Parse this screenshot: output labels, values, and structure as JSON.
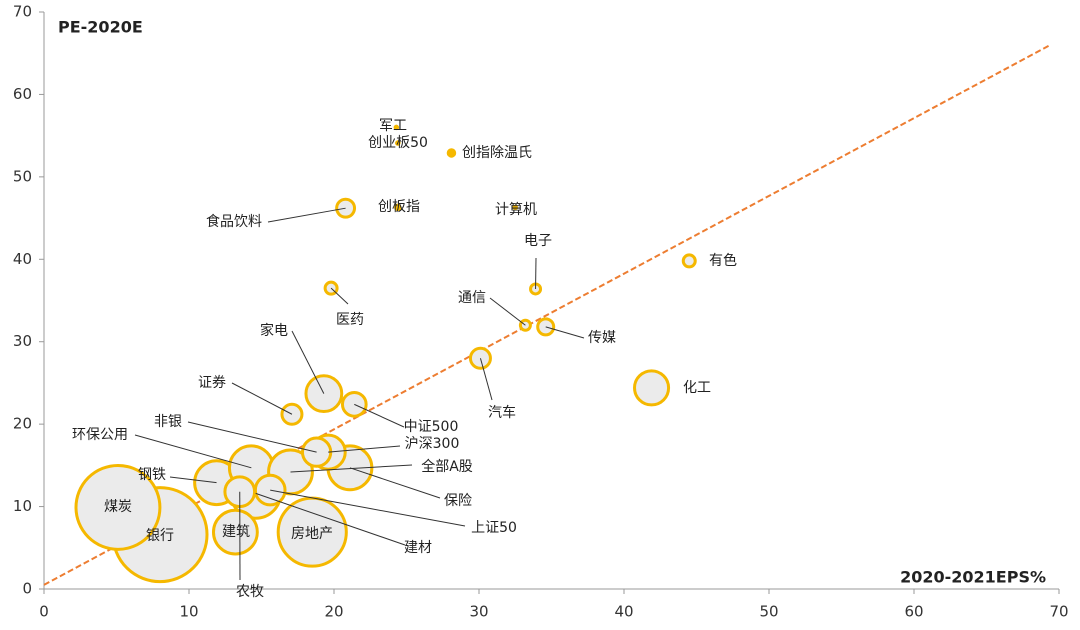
{
  "chart_data": {
    "type": "bubble",
    "title": "PE-2020E",
    "x_label": "2020-2021EPS%",
    "xlim": [
      0,
      70
    ],
    "ylim": [
      0,
      70
    ],
    "xticks": [
      0,
      10,
      20,
      30,
      40,
      50,
      60,
      70
    ],
    "yticks": [
      0,
      10,
      20,
      30,
      40,
      50,
      60,
      70
    ],
    "bubble_color": "#f5b800",
    "bubble_fill": "#ebebeb",
    "trendline": {
      "color": "#ed7d31",
      "x": [
        0,
        69.4
      ],
      "y": [
        0.5,
        66
      ]
    },
    "points": [
      {
        "label": "银行",
        "x": 8.0,
        "y": 6.6,
        "size": 221
      },
      {
        "label": "煤炭",
        "x": 5.1,
        "y": 9.9,
        "size": 176
      },
      {
        "label": "房地产",
        "x": 18.5,
        "y": 6.9,
        "size": 116
      },
      {
        "label": "建材",
        "x": 14.6,
        "y": 11.6,
        "size": 62
      },
      {
        "label": "建筑",
        "x": 13.2,
        "y": 6.9,
        "size": 48
      },
      {
        "label": "钢铁",
        "x": 11.9,
        "y": 12.9,
        "size": 48
      },
      {
        "label": "环保公用",
        "x": 14.3,
        "y": 14.7,
        "size": 48
      },
      {
        "label": "全部A股",
        "x": 17.0,
        "y": 14.2,
        "size": 48
      },
      {
        "label": "保险",
        "x": 21.1,
        "y": 14.7,
        "size": 48
      },
      {
        "label": "沪深300",
        "x": 19.6,
        "y": 16.6,
        "size": 29
      },
      {
        "label": "化工",
        "x": 41.9,
        "y": 24.4,
        "size": 29
      },
      {
        "label": "家电",
        "x": 19.3,
        "y": 23.7,
        "size": 32
      },
      {
        "label": "农牧",
        "x": 13.5,
        "y": 11.8,
        "size": 22
      },
      {
        "label": "上证50",
        "x": 15.6,
        "y": 12.0,
        "size": 22
      },
      {
        "label": "非银",
        "x": 18.8,
        "y": 16.6,
        "size": 20
      },
      {
        "label": "中证500",
        "x": 21.4,
        "y": 22.4,
        "size": 14
      },
      {
        "label": "证券",
        "x": 17.1,
        "y": 21.2,
        "size": 10
      },
      {
        "label": "汽车",
        "x": 30.1,
        "y": 28.0,
        "size": 10
      },
      {
        "label": "食品饮料",
        "x": 20.8,
        "y": 46.2,
        "size": 8
      },
      {
        "label": "传媒",
        "x": 34.6,
        "y": 31.8,
        "size": 6.4
      },
      {
        "label": "医药",
        "x": 19.8,
        "y": 36.5,
        "size": 3.6
      },
      {
        "label": "有色",
        "x": 44.5,
        "y": 39.8,
        "size": 3.6
      },
      {
        "label": "电子",
        "x": 33.9,
        "y": 36.4,
        "size": 2.5
      },
      {
        "label": "通信",
        "x": 33.2,
        "y": 32.0,
        "size": 2.5
      },
      {
        "label": "创指除温氏",
        "x": 28.1,
        "y": 52.9,
        "size": 1.6
      },
      {
        "label": "创板指",
        "x": 24.4,
        "y": 46.3,
        "size": 0.9
      },
      {
        "label": "军工",
        "x": 24.3,
        "y": 56.0,
        "size": 0.4
      },
      {
        "label": "创业板50",
        "x": 24.4,
        "y": 54.1,
        "size": 0.4
      },
      {
        "label": "计算机",
        "x": 32.5,
        "y": 46.3,
        "size": 0.4
      }
    ]
  }
}
